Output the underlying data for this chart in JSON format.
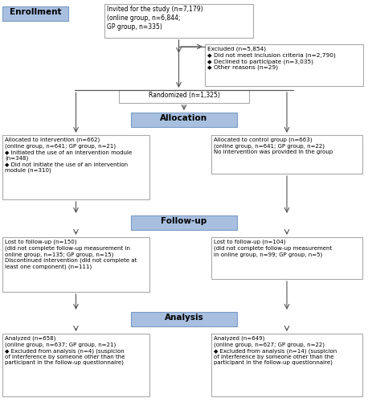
{
  "bg_color": "#ffffff",
  "blue_box_color": "#a8bfdf",
  "blue_box_edge_color": "#7a9cc8",
  "white_box_edge_color": "#aaaaaa",
  "arrow_color": "#555555",
  "enrollment_label": "Enrollment",
  "allocation_label": "Allocation",
  "followup_label": "Follow-up",
  "analysis_label": "Analysis",
  "invited_text": "Invited for the study (n=7,179)\n(online group, n=6,844;\nGP group, n=335)",
  "excluded_text": "Excluded (n=5,854)\n◆ Did not meet inclusion criteria (n=2,790)\n◆ Declined to participate (n=3,035)\n◆ Other reasons (n=29)",
  "randomized_text": "Randomized (n=1,325)",
  "allocated_intervention_text": "Allocated to intervention (n=662)\n(online group, n=641; GP group, n=21)\n◆ Initiated the use of an intervention module\n(n=348)\n◆ Did not initiate the use of an intervention\nmodule (n=310)",
  "allocated_control_text": "Allocated to control group (n=663)\n(online group, n=641; GP group, n=22)\nNo intervention was provided in the group",
  "lost_followup_left_text": "Lost to follow-up (n=150)\n(did not complete follow-up measurement in\nonline group, n=135; GP group, n=15)\nDiscontinued intervention (did not complete at\nleast one component) (n=111)",
  "lost_followup_right_text": "Lost to follow-up (n=104)\n(did not complete follow-up measurement\nin online group, n=99; GP group, n=5)",
  "analyzed_left_text": "Analyzed (n=658)\n(online group, n=637; GP group, n=21)\n◆ Excluded from analysis (n=4) (suspicion\nof interference by someone other than the\nparticipant in the follow-up questionnaire)",
  "analyzed_right_text": "Analyzed (n=649)\n(online group, n=627; GP group, n=22)\n◆ Excluded from analysis (n=14) (suspicion\nof interference by someone other than the\nparticipant in the follow-up questionnaire)"
}
